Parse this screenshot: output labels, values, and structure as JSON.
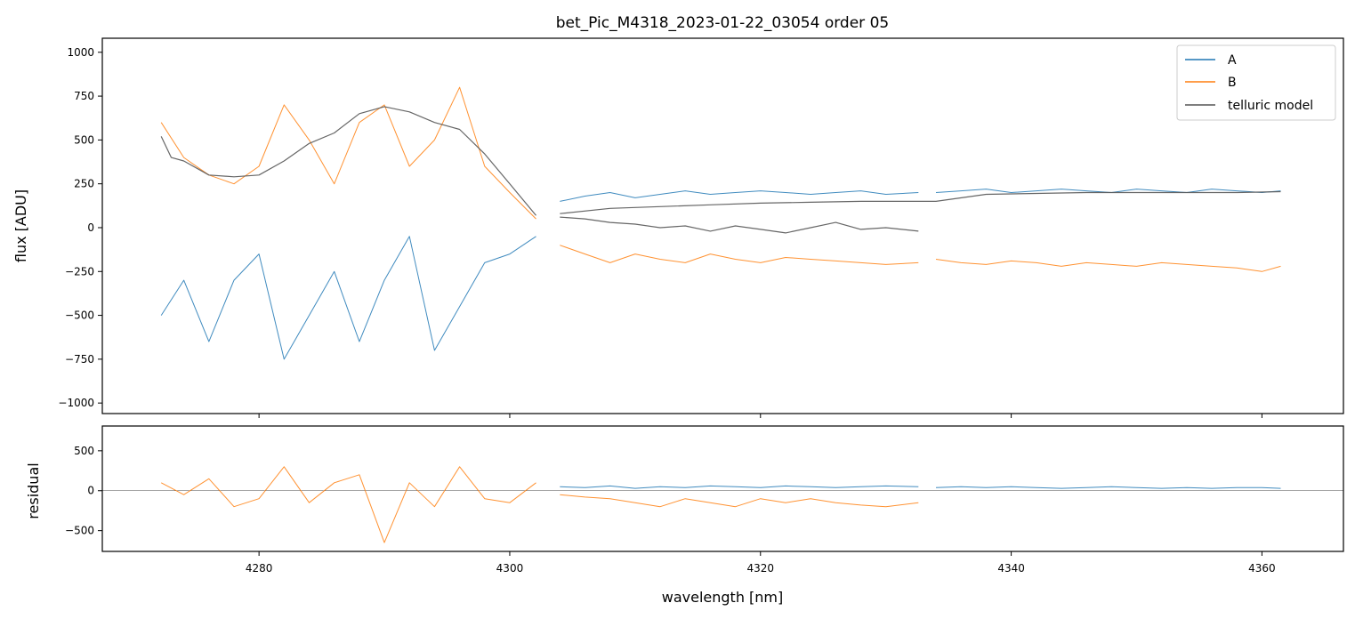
{
  "chart_data": [
    {
      "type": "line",
      "title": "bet_Pic_M4318_2023-01-22_03054  order 05",
      "xlabel": "",
      "ylabel": "flux [ADU]",
      "xlim": [
        4267.5,
        4366.5
      ],
      "ylim": [
        -1060,
        1080
      ],
      "yticks": [
        -1000,
        -750,
        -500,
        -250,
        0,
        250,
        500,
        750,
        1000
      ],
      "ytick_labels": [
        "−1000",
        "−750",
        "−500",
        "−250",
        "0",
        "250",
        "500",
        "750",
        "1000"
      ],
      "xticks": [
        4280,
        4300,
        4320,
        4340,
        4360
      ],
      "legend": {
        "placement": "top-right",
        "entries": [
          {
            "label": "A",
            "color": "#1f77b4"
          },
          {
            "label": "B",
            "color": "#ff7f0e"
          },
          {
            "label": "telluric model",
            "color": "#555555"
          }
        ]
      },
      "series": [
        {
          "name": "A",
          "color": "#1f77b4",
          "segments": [
            {
              "x": [
                4272.2,
                4274,
                4276,
                4278,
                4280,
                4282,
                4284,
                4286,
                4288,
                4290,
                4292,
                4294,
                4296,
                4298,
                4300,
                4302.1
              ],
              "y": [
                -500,
                -300,
                -650,
                -300,
                -150,
                -750,
                -500,
                -250,
                -650,
                -300,
                -50,
                -700,
                -450,
                -200,
                -150,
                -50
              ]
            },
            {
              "x": [
                4304.0,
                4306,
                4308,
                4310,
                4312,
                4314,
                4316,
                4318,
                4320,
                4322,
                4324,
                4326,
                4328,
                4330,
                4332.6
              ],
              "y": [
                150,
                180,
                200,
                170,
                190,
                210,
                190,
                200,
                210,
                200,
                190,
                200,
                210,
                190,
                200
              ]
            },
            {
              "x": [
                4334.0,
                4336,
                4338,
                4340,
                4342,
                4344,
                4346,
                4348,
                4350,
                4352,
                4354,
                4356,
                4358,
                4360,
                4361.5
              ],
              "y": [
                200,
                210,
                220,
                200,
                210,
                220,
                210,
                200,
                220,
                210,
                200,
                220,
                210,
                200,
                210
              ]
            }
          ]
        },
        {
          "name": "B",
          "color": "#ff7f0e",
          "segments": [
            {
              "x": [
                4272.2,
                4274,
                4276,
                4278,
                4280,
                4282,
                4284,
                4286,
                4288,
                4290,
                4292,
                4294,
                4296,
                4298,
                4300,
                4302.1
              ],
              "y": [
                600,
                400,
                300,
                250,
                350,
                700,
                500,
                250,
                600,
                700,
                350,
                500,
                800,
                350,
                200,
                50
              ]
            },
            {
              "x": [
                4304.0,
                4306,
                4308,
                4310,
                4312,
                4314,
                4316,
                4318,
                4320,
                4322,
                4324,
                4326,
                4328,
                4330,
                4332.6
              ],
              "y": [
                -100,
                -150,
                -200,
                -150,
                -180,
                -200,
                -150,
                -180,
                -200,
                -170,
                -180,
                -190,
                -200,
                -210,
                -200
              ]
            },
            {
              "x": [
                4334.0,
                4336,
                4338,
                4340,
                4342,
                4344,
                4346,
                4348,
                4350,
                4352,
                4354,
                4356,
                4358,
                4360,
                4361.5
              ],
              "y": [
                -180,
                -200,
                -210,
                -190,
                -200,
                -220,
                -200,
                -210,
                -220,
                -200,
                -210,
                -220,
                -230,
                -250,
                -220
              ]
            }
          ]
        },
        {
          "name": "telluric model",
          "color": "#555555",
          "segments": [
            {
              "x": [
                4272.2,
                4273,
                4274,
                4276,
                4278,
                4280,
                4282,
                4284,
                4286,
                4288,
                4290,
                4292,
                4294,
                4296,
                4298,
                4300,
                4302.1
              ],
              "y": [
                520,
                400,
                380,
                300,
                290,
                300,
                380,
                480,
                540,
                650,
                690,
                660,
                600,
                560,
                420,
                250,
                70
              ]
            },
            {
              "x": [
                4304.0,
                4306,
                4308,
                4310,
                4312,
                4314,
                4316,
                4318,
                4320,
                4322,
                4324,
                4326,
                4328,
                4330,
                4332.6
              ],
              "y": [
                60,
                50,
                30,
                20,
                0,
                10,
                -20,
                10,
                -10,
                -30,
                0,
                30,
                -10,
                0,
                -20
              ]
            },
            {
              "x": [
                4304.0,
                4308,
                4312,
                4316,
                4320,
                4324,
                4328,
                4332.6,
                4334.0,
                4338,
                4342,
                4346,
                4350,
                4354,
                4358,
                4361.5
              ],
              "y": [
                80,
                110,
                120,
                130,
                140,
                145,
                150,
                150,
                150,
                190,
                195,
                200,
                200,
                200,
                200,
                205
              ]
            }
          ]
        }
      ]
    },
    {
      "type": "line",
      "title": "",
      "xlabel": "wavelength [nm]",
      "ylabel": "residual",
      "xlim": [
        4267.5,
        4366.5
      ],
      "ylim": [
        -760,
        810
      ],
      "yticks": [
        -500,
        0,
        500
      ],
      "ytick_labels": [
        "−500",
        "0",
        "500"
      ],
      "xticks": [
        4280,
        4300,
        4320,
        4340,
        4360
      ],
      "xtick_labels": [
        "4280",
        "4300",
        "4320",
        "4340",
        "4360"
      ],
      "series": [
        {
          "name": "A",
          "color": "#1f77b4",
          "segments": [
            {
              "x": [
                4304.0,
                4306,
                4308,
                4310,
                4312,
                4314,
                4316,
                4318,
                4320,
                4322,
                4324,
                4326,
                4328,
                4330,
                4332.6
              ],
              "y": [
                50,
                40,
                60,
                30,
                50,
                40,
                60,
                50,
                40,
                60,
                50,
                40,
                50,
                60,
                50
              ]
            },
            {
              "x": [
                4334.0,
                4336,
                4338,
                4340,
                4342,
                4344,
                4346,
                4348,
                4350,
                4352,
                4354,
                4356,
                4358,
                4360,
                4361.5
              ],
              "y": [
                40,
                50,
                40,
                50,
                40,
                30,
                40,
                50,
                40,
                30,
                40,
                30,
                40,
                40,
                30
              ]
            }
          ]
        },
        {
          "name": "B",
          "color": "#ff7f0e",
          "segments": [
            {
              "x": [
                4272.2,
                4274,
                4276,
                4278,
                4280,
                4282,
                4284,
                4286,
                4288,
                4290,
                4292,
                4294,
                4296,
                4298,
                4300,
                4302.1
              ],
              "y": [
                100,
                -50,
                150,
                -200,
                -100,
                300,
                -150,
                100,
                200,
                -650,
                100,
                -200,
                300,
                -100,
                -150,
                100
              ]
            },
            {
              "x": [
                4304.0,
                4306,
                4308,
                4310,
                4312,
                4314,
                4316,
                4318,
                4320,
                4322,
                4324,
                4326,
                4328,
                4330,
                4332.6
              ],
              "y": [
                -50,
                -80,
                -100,
                -150,
                -200,
                -100,
                -150,
                -200,
                -100,
                -150,
                -100,
                -150,
                -180,
                -200,
                -150
              ]
            }
          ]
        }
      ]
    }
  ]
}
